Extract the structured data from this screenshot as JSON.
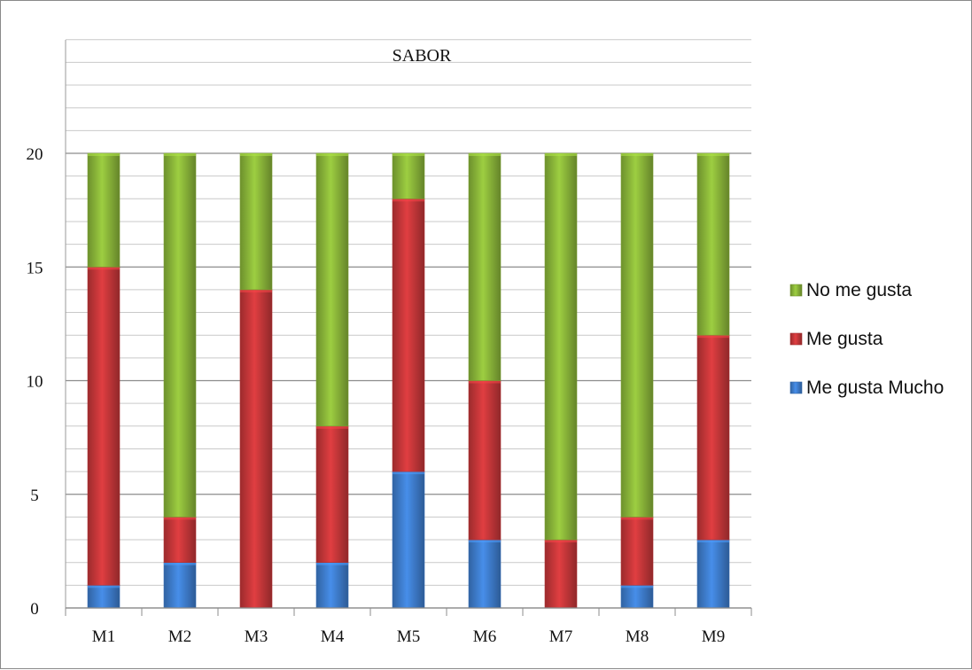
{
  "chart_data": {
    "type": "bar",
    "stacked": true,
    "title": "SABOR",
    "xlabel": "",
    "ylabel": "",
    "categories": [
      "M1",
      "M2",
      "M3",
      "M4",
      "M5",
      "M6",
      "M7",
      "M8",
      "M9"
    ],
    "y_ticks": [
      "0",
      "5",
      "10",
      "15",
      "20"
    ],
    "ylim": [
      0,
      20
    ],
    "grid": true,
    "legend_position": "right",
    "series": [
      {
        "name": "Me gusta Mucho",
        "color": "#3f7fd0",
        "values": [
          1,
          2,
          0,
          2,
          6,
          3,
          0,
          1,
          3
        ]
      },
      {
        "name": "Me gusta",
        "color": "#c8373a",
        "values": [
          14,
          2,
          14,
          6,
          12,
          7,
          3,
          3,
          9
        ]
      },
      {
        "name": "No me gusta",
        "color": "#8cb83a",
        "values": [
          5,
          16,
          6,
          12,
          2,
          10,
          17,
          16,
          8
        ]
      }
    ],
    "legend_order": [
      "No me gusta",
      "Me gusta",
      "Me gusta Mucho"
    ]
  }
}
